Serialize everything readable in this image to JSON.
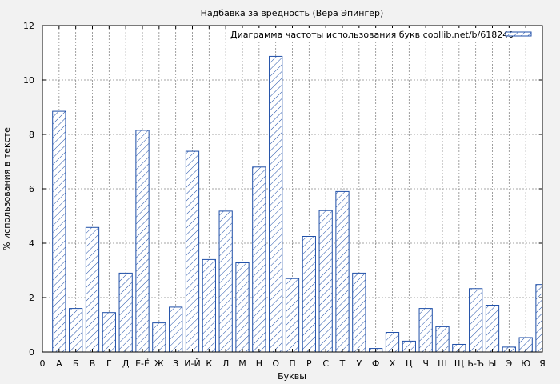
{
  "chart_data": {
    "type": "bar",
    "title": "Надбавка за вредность (Вера Эпингер)",
    "xlabel": "Буквы",
    "ylabel": "% использования в тексте",
    "legend": "Диаграмма частоты использования букв coollib.net/b/618240",
    "legend_position": "top-right",
    "x_tick_first": "0",
    "categories": [
      "А",
      "Б",
      "В",
      "Г",
      "Д",
      "Е-Ё",
      "Ж",
      "З",
      "И-Й",
      "К",
      "Л",
      "М",
      "Н",
      "О",
      "П",
      "Р",
      "С",
      "Т",
      "У",
      "Ф",
      "Х",
      "Ц",
      "Ч",
      "Ш",
      "Щ",
      "Ь-Ъ",
      "Ы",
      "Э",
      "Ю",
      "Я"
    ],
    "values": [
      8.85,
      1.6,
      4.58,
      1.45,
      2.9,
      8.15,
      1.07,
      1.65,
      7.38,
      3.4,
      5.18,
      3.28,
      6.8,
      10.87,
      2.7,
      4.25,
      5.2,
      5.9,
      2.9,
      0.13,
      0.72,
      0.4,
      1.6,
      0.93,
      0.28,
      2.33,
      1.72,
      0.18,
      0.53,
      2.48
    ],
    "ylim": [
      0,
      12
    ],
    "yticks": [
      0,
      2,
      4,
      6,
      8,
      10,
      12
    ],
    "grid": true,
    "colors": {
      "bar_stroke": "#1f4fa8",
      "background": "#f2f2f2"
    }
  }
}
